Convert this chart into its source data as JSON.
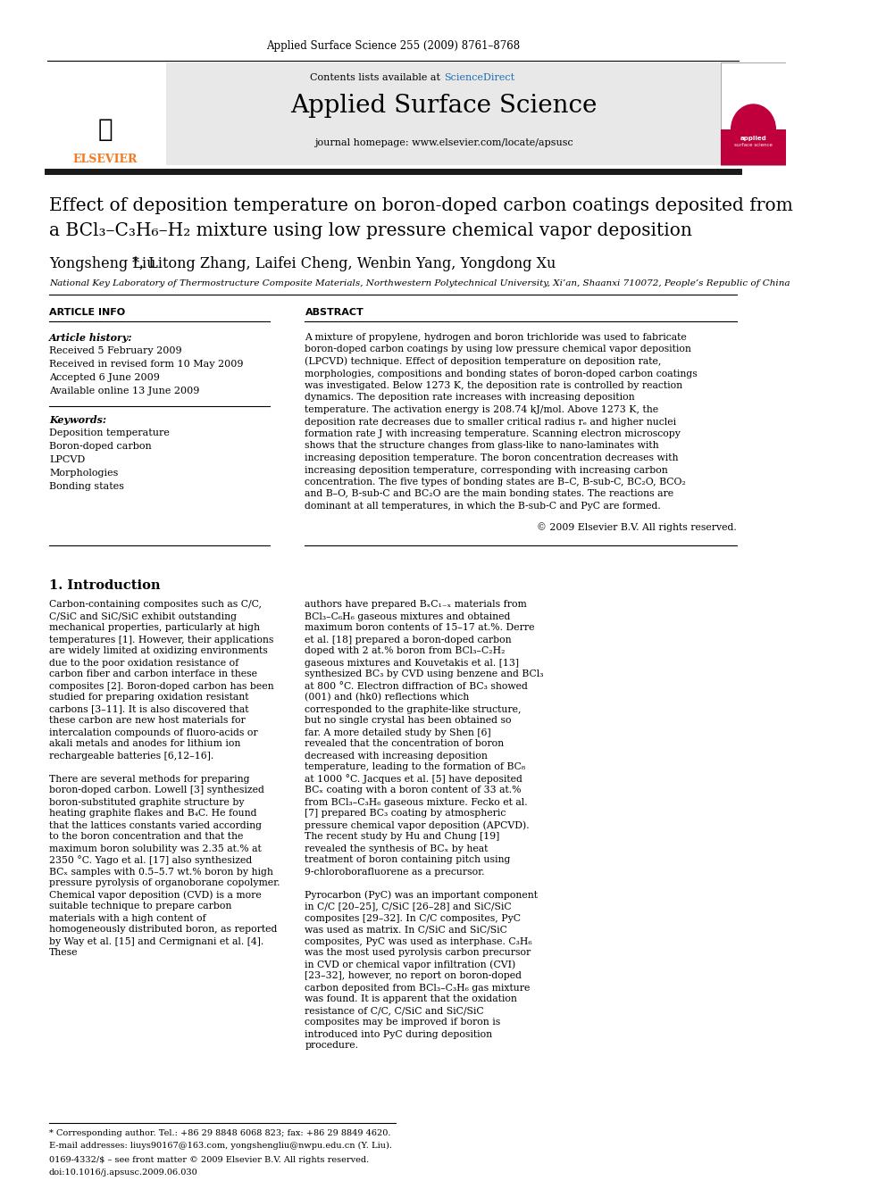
{
  "journal_header": "Applied Surface Science 255 (2009) 8761–8768",
  "journal_name": "Applied Surface Science",
  "contents_text": "Contents lists available at ScienceDirect",
  "sciencedirect_text": "ScienceDirect",
  "homepage_text": "journal homepage: www.elsevier.com/locate/apsusc",
  "title_line1": "Effect of deposition temperature on boron-doped carbon coatings deposited from",
  "title_line2": "a BCl₃–C₃H₆–H₂ mixture using low pressure chemical vapor deposition",
  "authors": "Yongsheng Liu ×, Litong Zhang, Laifei Cheng, Wenbin Yang, Yongdong Xu",
  "affiliation": "National Key Laboratory of Thermostructure Composite Materials, Northwestern Polytechnical University, Xi’an, Shaanxi 710072, People’s Republic of China",
  "article_info_title": "ARTICLE INFO",
  "article_history_title": "Article history:",
  "received": "Received 5 February 2009",
  "revised": "Received in revised form 10 May 2009",
  "accepted": "Accepted 6 June 2009",
  "available": "Available online 13 June 2009",
  "keywords_title": "Keywords:",
  "keywords": [
    "Deposition temperature",
    "Boron-doped carbon",
    "LPCVD",
    "Morphologies",
    "Bonding states"
  ],
  "abstract_title": "ABSTRACT",
  "abstract_text": "A mixture of propylene, hydrogen and boron trichloride was used to fabricate boron-doped carbon coatings by using low pressure chemical vapor deposition (LPCVD) technique. Effect of deposition temperature on deposition rate, morphologies, compositions and bonding states of boron-doped carbon coatings was investigated. Below 1273 K, the deposition rate is controlled by reaction dynamics. The deposition rate increases with increasing deposition temperature. The activation energy is 208.74 kJ/mol. Above 1273 K, the deposition rate decreases due to smaller critical radius rₑ and higher nuclei formation rate J with increasing temperature. Scanning electron microscopy shows that the structure changes from glass-like to nano-laminates with increasing deposition temperature. The boron concentration decreases with increasing deposition temperature, corresponding with increasing carbon concentration. The five types of bonding states are B–C, B-sub-C, BC₂O, BCO₂ and B–O, B-sub-C and BC₂O are the main bonding states. The reactions are dominant at all temperatures, in which the B-sub-C and PyC are formed.",
  "copyright": "© 2009 Elsevier B.V. All rights reserved.",
  "section1_title": "1. Introduction",
  "intro_left": "    Carbon-containing composites such as C/C, C/SiC and SiC/SiC exhibit outstanding mechanical properties, particularly at high temperatures [1]. However, their applications are widely limited at oxidizing environments due to the poor oxidation resistance of carbon fiber and carbon interface in these composites [2]. Boron-doped carbon has been studied for preparing oxidation resistant carbons [3–11]. It is also discovered that these carbon are new host materials for intercalation compounds of fluoro-acids or akali metals and anodes for lithium ion rechargeable batteries [6,12–16].\n\n    There are several methods for preparing boron-doped carbon. Lowell [3] synthesized boron-substituted graphite structure by heating graphite flakes and B₄C. He found that the lattices constants varied according to the boron concentration and that the maximum boron solubility was 2.35 at.% at 2350 °C. Yago et al. [17] also synthesized BCₓ samples with 0.5–5.7 wt.% boron by high pressure pyrolysis of organoborane copolymer. Chemical vapor deposition (CVD) is a more suitable technique to prepare carbon materials with a high content of homogeneously distributed boron, as reported by Way et al. [15] and Cermignani et al. [4]. These",
  "intro_right": "authors have prepared BₓC₁₋ₓ materials from BCl₃–C₆H₆ gaseous mixtures and obtained maximum boron contents of 15–17 at.%. Derre et al. [18] prepared a boron-doped carbon doped with 2 at.% boron from BCl₃–C₂H₂ gaseous mixtures and Kouvetakis et al. [13] synthesized BC₃ by CVD using benzene and BCl₃ at 800 °C. Electron diffraction of BC₃ showed (001) and (hk0) reflections which corresponded to the graphite-like structure, but no single crystal has been obtained so far. A more detailed study by Shen [6] revealed that the concentration of boron decreased with increasing deposition temperature, leading to the formation of BC₈ at 1000 °C. Jacques et al. [5] have deposited BCₓ coating with a boron content of 33 at.% from BCl₃–C₃H₆ gaseous mixture. Fecko et al. [7] prepared BC₃ coating by atmospheric pressure chemical vapor deposition (APCVD). The recent study by Hu and Chung [19] revealed the synthesis of BCₓ by heat treatment of boron containing pitch using 9-chloroborafluorene as a precursor.\n\n    Pyrocarbon (PyC) was an important component in C/C [20–25], C/SiC [26–28] and SiC/SiC composites [29–32]. In C/C composites, PyC was used as matrix. In C/SiC and SiC/SiC composites, PyC was used as interphase. C₃H₆ was the most used pyrolysis carbon precursor in CVD or chemical vapor infiltration (CVI) [23–32], however, no report on boron-doped carbon deposited from BCl₃–C₃H₆ gas mixture was found. It is apparent that the oxidation resistance of C/C, C/SiC and SiC/SiC composites may be improved if boron is introduced into PyC during deposition procedure.",
  "footnote_star": "* Corresponding author. Tel.: +86 29 8848 6068 823; fax: +86 29 8849 4620.",
  "footnote_email": "E-mail addresses: liuys90167@163.com, yongshengliu@nwpu.edu.cn (Y. Liu).",
  "issn": "0169-4332/$ – see front matter © 2009 Elsevier B.V. All rights reserved.",
  "doi": "doi:10.1016/j.apsusc.2009.06.030",
  "header_bg": "#e8e8e8",
  "thick_line_color": "#1a1a1a",
  "elsevier_orange": "#f47920",
  "science_direct_blue": "#1f6cb0",
  "journal_cover_red": "#c0003c"
}
